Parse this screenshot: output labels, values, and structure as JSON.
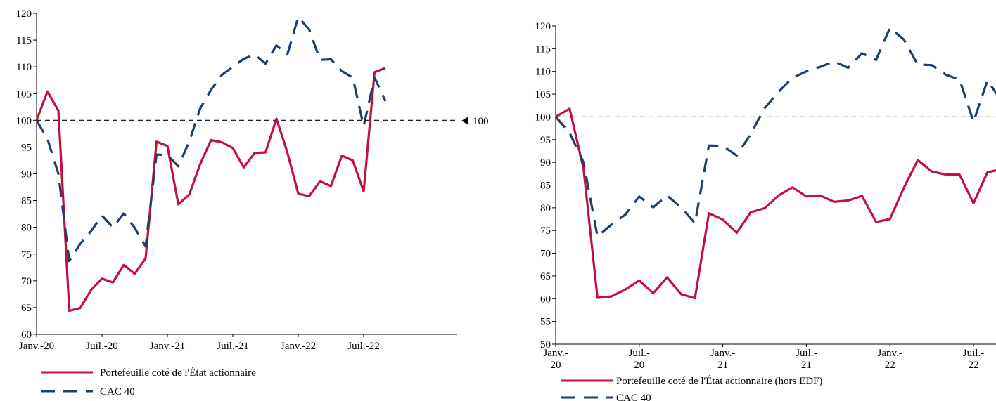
{
  "colors": {
    "portfolio": "#C4103F",
    "cac": "#1F3F6B",
    "reference": "#000000",
    "axis": "#000000"
  },
  "chart_data": [
    {
      "type": "line",
      "ylim": [
        60,
        120
      ],
      "yticks": [
        60,
        65,
        70,
        75,
        80,
        85,
        90,
        95,
        100,
        105,
        110,
        115,
        120
      ],
      "x_labels": [
        "Janv.-20",
        "Juil.-20",
        "Janv.-21",
        "Juil.-21",
        "Janv.-22",
        "Juil.-22"
      ],
      "reference": {
        "value": 100,
        "label": "100"
      },
      "series": [
        {
          "name": "Portefeuille coté de l'État actionnaire",
          "style": "solid",
          "values": [
            100,
            105.4,
            101.8,
            64.4,
            64.9,
            68.3,
            70.4,
            69.7,
            73.0,
            71.3,
            74.2,
            96.0,
            95.2,
            84.3,
            86.1,
            91.8,
            96.3,
            95.9,
            94.8,
            91.2,
            93.9,
            94.0,
            100.3,
            94.0,
            86.3,
            85.8,
            88.6,
            87.7,
            93.4,
            92.5,
            86.7,
            109.0,
            109.8
          ]
        },
        {
          "name": "CAC 40",
          "style": "dashed",
          "values": [
            100,
            96.5,
            90.0,
            73.7,
            76.9,
            79.3,
            82.2,
            80.0,
            82.6,
            79.9,
            76.4,
            93.6,
            93.5,
            91.4,
            96.0,
            102.2,
            105.7,
            108.5,
            110.0,
            111.5,
            112.3,
            110.6,
            114.0,
            112.3,
            119.3,
            117.0,
            111.3,
            111.4,
            109.2,
            108.0,
            98.9,
            108.0,
            103.6
          ]
        }
      ]
    },
    {
      "type": "line",
      "ylim": [
        50,
        120
      ],
      "yticks": [
        50,
        55,
        60,
        65,
        70,
        75,
        80,
        85,
        90,
        95,
        100,
        105,
        110,
        115,
        120
      ],
      "x_labels": [
        [
          "Janv.-",
          "20"
        ],
        [
          "Juil.-",
          "20"
        ],
        [
          "Janv.-",
          "21"
        ],
        [
          "Juil.-",
          "21"
        ],
        [
          "Janv.-",
          "22"
        ],
        [
          "Juil.-",
          "22"
        ]
      ],
      "reference": {
        "value": 100
      },
      "series": [
        {
          "name": "Portefeuille coté de l'État actionnaire (hors EDF)",
          "style": "solid",
          "values": [
            100,
            101.8,
            88.6,
            60.2,
            60.5,
            62.0,
            64.0,
            61.2,
            64.7,
            61.0,
            60.1,
            78.8,
            77.4,
            74.5,
            79.0,
            79.9,
            82.7,
            84.5,
            82.5,
            82.7,
            81.3,
            81.6,
            82.6,
            76.9,
            77.5,
            84.4,
            90.5,
            88.0,
            87.3,
            87.3,
            81.0,
            87.8,
            88.5
          ]
        },
        {
          "name": "CAC 40",
          "style": "dashed",
          "values": [
            100,
            96.5,
            90.0,
            73.7,
            76.3,
            78.5,
            82.5,
            80.1,
            82.7,
            80.1,
            76.6,
            93.7,
            93.6,
            91.5,
            96.2,
            101.9,
            105.5,
            108.6,
            110.0,
            111.0,
            112.2,
            110.8,
            114.0,
            112.5,
            119.6,
            117.0,
            111.5,
            111.4,
            109.3,
            108.2,
            98.9,
            108.0,
            103.6
          ]
        }
      ]
    }
  ]
}
